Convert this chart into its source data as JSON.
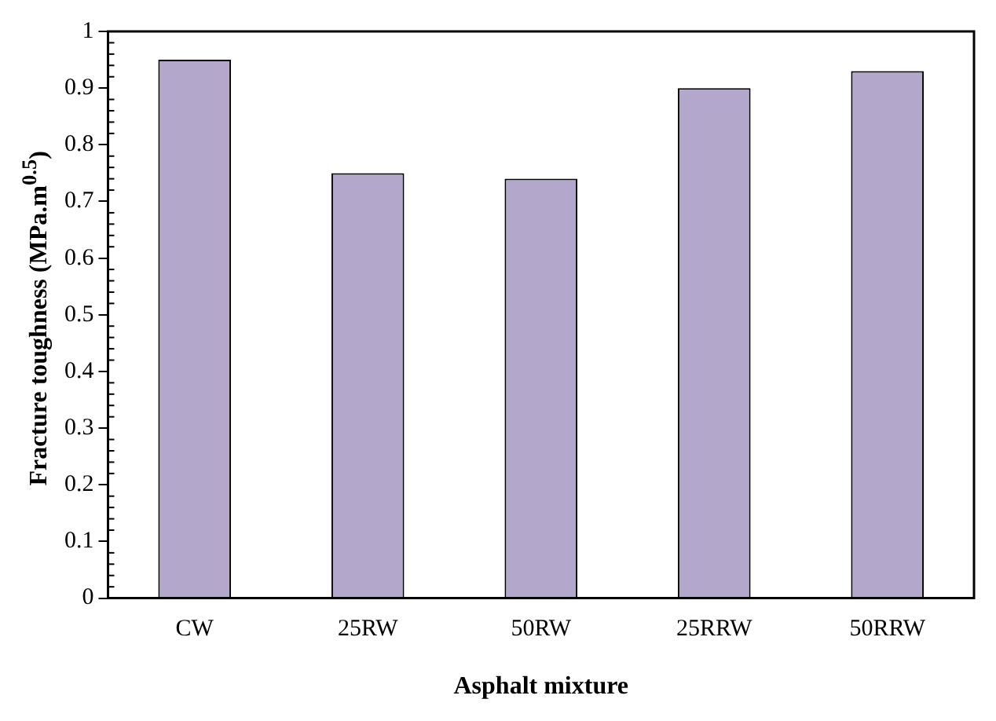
{
  "chart_data": {
    "type": "bar",
    "xlabel": "Asphalt mixture",
    "ylabel": "Fracture toughness (MPa.m$^{0.5}$)",
    "categories": [
      "CW",
      "25RW",
      "50RW",
      "25RRW",
      "50RRW"
    ],
    "values": [
      0.95,
      0.75,
      0.74,
      0.9,
      0.93
    ],
    "color": "#b4a7cc",
    "ylim": [
      0,
      1
    ],
    "yticks": [
      0,
      0.1,
      0.2,
      0.3,
      0.4,
      0.5,
      0.6,
      0.7,
      0.8,
      0.9,
      1
    ],
    "grid": false,
    "legend": false
  }
}
